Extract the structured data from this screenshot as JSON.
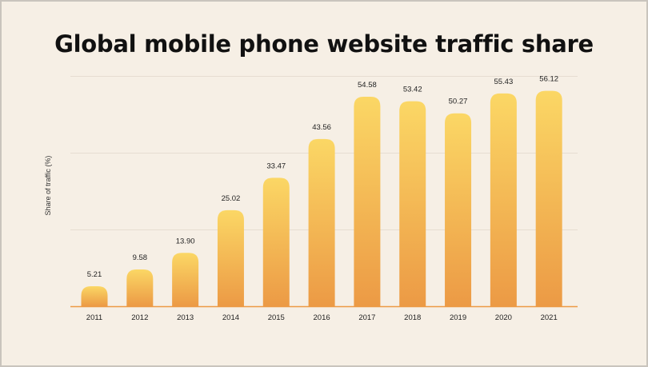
{
  "chart_data": {
    "type": "bar",
    "title": "Global mobile phone website traffic share",
    "xlabel": "",
    "ylabel": "Share of traffic (%)",
    "categories": [
      "2011",
      "2012",
      "2013",
      "2014",
      "2015",
      "2016",
      "2017",
      "2018",
      "2019",
      "2020",
      "2021"
    ],
    "values": [
      5.21,
      9.58,
      13.9,
      25.02,
      33.47,
      43.56,
      54.58,
      53.42,
      50.27,
      55.43,
      56.12
    ],
    "value_labels": [
      "5.21",
      "9.58",
      "13.90",
      "25.02",
      "33.47",
      "43.56",
      "54.58",
      "53.42",
      "50.27",
      "55.43",
      "56.12"
    ],
    "ylim": [
      0,
      60
    ],
    "grid": true,
    "legend": "none",
    "colors": {
      "bar_top": "#fbd765",
      "bar_bottom": "#ec9a45",
      "gridline": "#e6ddd1",
      "axis": "#ec9a45",
      "background": "#f6efe5"
    }
  }
}
